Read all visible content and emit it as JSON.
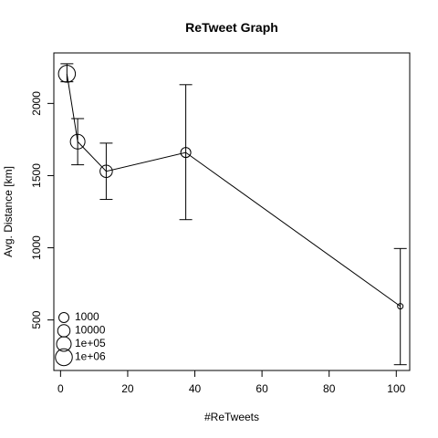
{
  "chart_data": {
    "type": "line",
    "title": "ReTweet Graph",
    "xlabel": "#ReTweets",
    "ylabel": "Avg. Distance [km]",
    "xlim": [
      -2,
      104
    ],
    "ylim": [
      150,
      2350
    ],
    "x_ticks": [
      0,
      20,
      40,
      60,
      80,
      100
    ],
    "y_ticks": [
      500,
      1000,
      1500,
      2000
    ],
    "grid": false,
    "legend_position": "bottom-left",
    "series": [
      {
        "points": [
          {
            "x": 1.9,
            "y": 2205,
            "err_low": 2150,
            "err_high": 2275,
            "size": 1000000
          },
          {
            "x": 5.1,
            "y": 1735,
            "err_low": 1575,
            "err_high": 1895,
            "size": 100000
          },
          {
            "x": 13.6,
            "y": 1530,
            "err_low": 1335,
            "err_high": 1725,
            "size": 10000
          },
          {
            "x": 37.3,
            "y": 1660,
            "err_low": 1195,
            "err_high": 2130,
            "size": 1000
          },
          {
            "x": 101.2,
            "y": 595,
            "err_low": 190,
            "err_high": 995,
            "size": 10
          }
        ]
      }
    ],
    "legend": [
      {
        "label": "1000",
        "size": 1000
      },
      {
        "label": "10000",
        "size": 10000
      },
      {
        "label": "1e+05",
        "size": 100000
      },
      {
        "label": "1e+06",
        "size": 1000000
      }
    ]
  }
}
